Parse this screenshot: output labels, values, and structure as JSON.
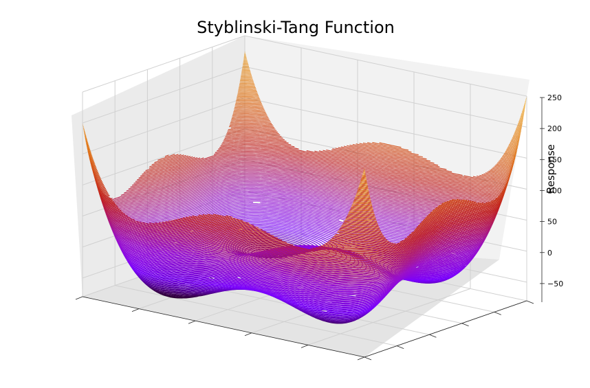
{
  "chart_data": {
    "type": "surface3d",
    "title": "Styblinski-Tang Function",
    "zlabel": "Response",
    "z_ticks": [
      "250",
      "200",
      "150",
      "100",
      "50",
      "0",
      "−50"
    ],
    "z_tick_values": [
      250,
      200,
      150,
      100,
      50,
      0,
      -50
    ],
    "zlim": [
      -80,
      250
    ],
    "function": "0.5 * sum(x_i^4 - 16 x_i^2 + 5 x_i)",
    "xlim": [
      -5,
      5
    ],
    "ylim": [
      -5,
      5
    ],
    "x_tick_labels_visible": false,
    "y_tick_labels_visible": false,
    "grid": true,
    "render": "contour-lines",
    "colormap": "gnuplot",
    "color_stops": [
      "#1a0010",
      "#3a0050",
      "#7a00ff",
      "#9a10c8",
      "#c02020",
      "#e07010",
      "#f0b030"
    ]
  }
}
